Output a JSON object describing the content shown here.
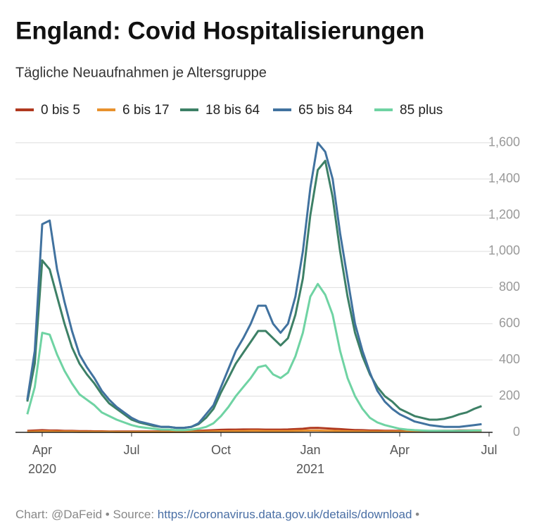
{
  "chart_data": {
    "type": "line",
    "title": "England: Covid Hospitalisierungen",
    "subtitle": "Tägliche Neuaufnahmen je Altersgruppe",
    "categories": [
      null,
      null,
      "Apr",
      null,
      null,
      null,
      null,
      null,
      null,
      null,
      null,
      null,
      null,
      null,
      "Jul",
      null,
      null,
      null,
      null,
      null,
      null,
      null,
      null,
      null,
      null,
      null,
      "Oct",
      null,
      null,
      null,
      null,
      null,
      null,
      null,
      null,
      null,
      null,
      null,
      "Jan",
      null,
      null,
      null,
      null,
      null,
      null,
      null,
      null,
      null,
      null,
      null,
      "Apr",
      null,
      null,
      null,
      null,
      null,
      null,
      null,
      null,
      null,
      null,
      null,
      "Jul"
    ],
    "years": [
      null,
      null,
      "2020",
      null,
      null,
      null,
      null,
      null,
      null,
      null,
      null,
      null,
      null,
      null,
      null,
      null,
      null,
      null,
      null,
      null,
      null,
      null,
      null,
      null,
      null,
      null,
      null,
      null,
      null,
      null,
      null,
      null,
      null,
      null,
      null,
      null,
      null,
      null,
      "2021",
      null,
      null,
      null,
      null,
      null,
      null,
      null,
      null,
      null,
      null,
      null,
      null,
      null,
      null,
      null,
      null,
      null,
      null,
      null,
      null,
      null,
      null,
      null,
      null
    ],
    "series": [
      {
        "name": "0 bis 5",
        "color": "#b0391f",
        "values": [
          8,
          10,
          12,
          10,
          10,
          8,
          8,
          7,
          7,
          6,
          6,
          5,
          5,
          5,
          5,
          5,
          5,
          5,
          5,
          5,
          5,
          5,
          6,
          8,
          10,
          12,
          14,
          15,
          15,
          16,
          16,
          16,
          15,
          15,
          15,
          16,
          18,
          20,
          24,
          25,
          22,
          20,
          18,
          15,
          13,
          12,
          10,
          10,
          9,
          9,
          8,
          8,
          8,
          8,
          8,
          8,
          9,
          9,
          10,
          10,
          11,
          11,
          null
        ]
      },
      {
        "name": "6 bis 17",
        "color": "#e8912d",
        "values": [
          3,
          4,
          5,
          5,
          4,
          4,
          4,
          3,
          3,
          3,
          3,
          3,
          2,
          2,
          2,
          2,
          2,
          2,
          2,
          2,
          2,
          2,
          3,
          3,
          4,
          5,
          6,
          6,
          7,
          7,
          8,
          8,
          7,
          7,
          7,
          7,
          8,
          9,
          10,
          10,
          9,
          8,
          7,
          6,
          5,
          5,
          4,
          4,
          4,
          4,
          4,
          4,
          4,
          4,
          4,
          4,
          5,
          5,
          5,
          6,
          6,
          6,
          null
        ]
      },
      {
        "name": "18 bis 64",
        "color": "#3d8066",
        "values": [
          170,
          380,
          950,
          900,
          750,
          600,
          470,
          380,
          320,
          270,
          210,
          160,
          130,
          100,
          70,
          55,
          45,
          35,
          30,
          30,
          25,
          25,
          30,
          45,
          80,
          130,
          220,
          300,
          380,
          440,
          500,
          560,
          560,
          520,
          480,
          520,
          650,
          850,
          1200,
          1450,
          1500,
          1300,
          1000,
          750,
          550,
          420,
          320,
          250,
          200,
          170,
          130,
          110,
          90,
          80,
          70,
          70,
          75,
          85,
          100,
          110,
          130,
          145,
          null
        ]
      },
      {
        "name": "65 bis 84",
        "color": "#41729f",
        "values": [
          180,
          450,
          1150,
          1170,
          900,
          720,
          560,
          430,
          360,
          300,
          230,
          180,
          140,
          110,
          80,
          60,
          50,
          40,
          30,
          30,
          25,
          25,
          30,
          50,
          100,
          150,
          250,
          350,
          450,
          520,
          600,
          700,
          700,
          600,
          550,
          600,
          750,
          1000,
          1350,
          1600,
          1550,
          1400,
          1100,
          850,
          600,
          450,
          330,
          230,
          170,
          130,
          100,
          80,
          60,
          50,
          40,
          35,
          30,
          30,
          30,
          35,
          40,
          45,
          null
        ]
      },
      {
        "name": "85 plus",
        "color": "#6fd3a3",
        "values": [
          100,
          250,
          550,
          540,
          430,
          340,
          270,
          210,
          180,
          150,
          110,
          90,
          70,
          55,
          40,
          30,
          25,
          20,
          15,
          15,
          12,
          12,
          15,
          20,
          30,
          50,
          90,
          140,
          200,
          250,
          300,
          360,
          370,
          320,
          300,
          330,
          420,
          550,
          750,
          820,
          760,
          650,
          450,
          300,
          200,
          130,
          80,
          55,
          40,
          30,
          20,
          15,
          12,
          10,
          8,
          8,
          8,
          8,
          8,
          9,
          10,
          10,
          null
        ]
      }
    ],
    "ylim": [
      0,
      1700
    ],
    "yticks": [
      0,
      200,
      400,
      600,
      800,
      {
        "value": 1000,
        "label": "1,000"
      },
      {
        "value": 1200,
        "label": "1,200"
      },
      {
        "value": 1400,
        "label": "1,400"
      },
      {
        "value": 1600,
        "label": "1,600"
      }
    ],
    "grid": true,
    "source_prefix": "Chart: @DaFeid • Source: ",
    "source_link": "https://coronavirus.data.gov.uk/details/download",
    "source_suffix": " •"
  }
}
